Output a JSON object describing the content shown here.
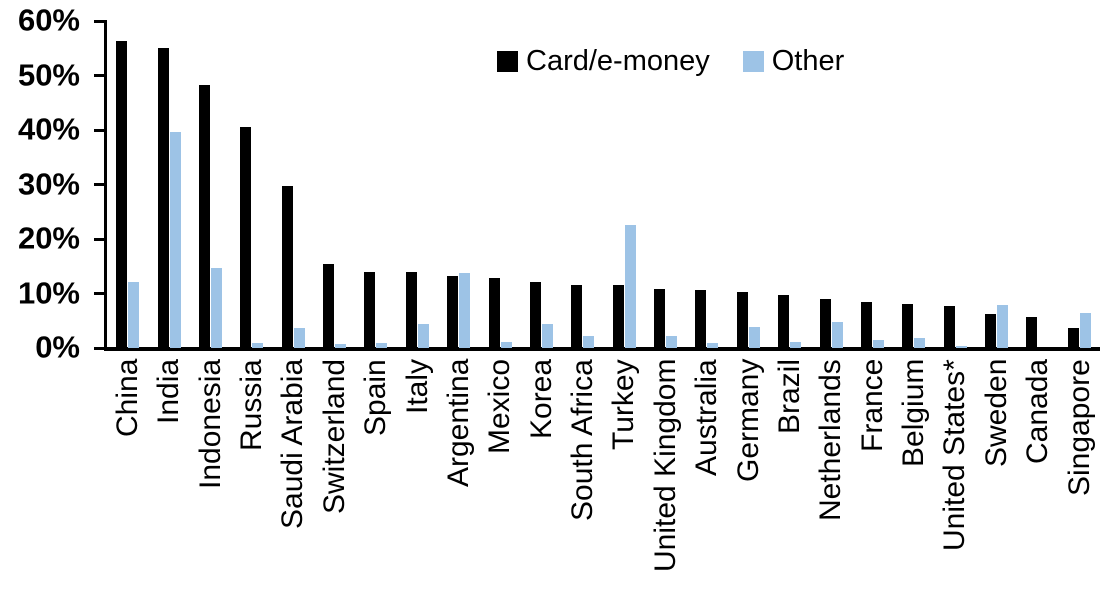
{
  "colors": {
    "card_series": "#000000",
    "other_series": "#9DC3E6",
    "axis": "#000000",
    "background": "#FFFFFF"
  },
  "chart_data": {
    "type": "bar",
    "title": "",
    "xlabel": "",
    "ylabel": "",
    "ylim": [
      0,
      60
    ],
    "grid": false,
    "legend_position": "top-center",
    "ytick_values": [
      0,
      10,
      20,
      30,
      40,
      50,
      60
    ],
    "ytick_labels": [
      "0%",
      "10%",
      "20%",
      "30%",
      "40%",
      "50%",
      "60%"
    ],
    "categories": [
      "China",
      "India",
      "Indonesia",
      "Russia",
      "Saudi Arabia",
      "Switzerland",
      "Spain",
      "Italy",
      "Argentina",
      "Mexico",
      "Korea",
      "South Africa",
      "Turkey",
      "United Kingdom",
      "Australia",
      "Germany",
      "Brazil",
      "Netherlands",
      "France",
      "Belgium",
      "United States*",
      "Sweden",
      "Canada",
      "Singapore"
    ],
    "series": [
      {
        "name": "Card/e-money",
        "color": "#000000",
        "values": [
          56.3,
          55.1,
          48.2,
          40.5,
          29.8,
          15.4,
          14.0,
          13.9,
          13.3,
          12.8,
          12.1,
          11.6,
          11.5,
          10.9,
          10.6,
          10.3,
          9.8,
          9.0,
          8.4,
          8.0,
          7.7,
          6.3,
          5.7,
          3.6
        ]
      },
      {
        "name": "Other",
        "color": "#9DC3E6",
        "values": [
          12.2,
          39.7,
          14.6,
          1.0,
          3.7,
          0.7,
          0.9,
          4.4,
          13.7,
          1.2,
          4.4,
          2.2,
          22.5,
          2.3,
          1.0,
          3.8,
          1.1,
          4.7,
          1.5,
          1.9,
          0.3,
          7.9,
          0.0,
          6.4
        ]
      }
    ]
  }
}
